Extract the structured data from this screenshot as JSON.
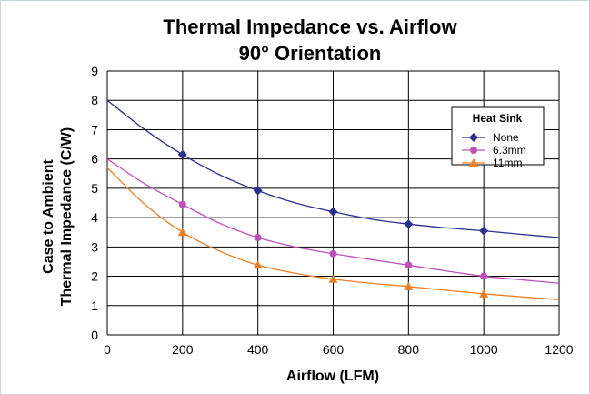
{
  "chart_data": {
    "type": "line",
    "title": [
      "Thermal Impedance vs. Airflow",
      "90° Orientation"
    ],
    "xlabel": "Airflow (LFM)",
    "ylabel": [
      "Case to Ambient",
      "Thermal Impedance (C/W)"
    ],
    "xlim": [
      0,
      1200
    ],
    "ylim": [
      0,
      9
    ],
    "xticks": [
      "0",
      "200",
      "400",
      "600",
      "800",
      "1000",
      "1200"
    ],
    "yticks": [
      "0",
      "1",
      "2",
      "3",
      "4",
      "5",
      "6",
      "7",
      "8",
      "9"
    ],
    "grid": true,
    "legend": {
      "title": "Heat Sink",
      "placement": "top-right"
    },
    "series": [
      {
        "name": "None",
        "color": "#2b2f8f",
        "marker": "diamond",
        "markers_x": [
          200,
          400,
          600,
          800,
          1000
        ],
        "markers_y": [
          6.15,
          4.92,
          4.2,
          3.78,
          3.55
        ],
        "x": [
          0,
          100,
          200,
          300,
          400,
          500,
          600,
          700,
          800,
          900,
          1000,
          1100,
          1200
        ],
        "y": [
          8.0,
          7.0,
          6.15,
          5.45,
          4.92,
          4.5,
          4.2,
          3.95,
          3.78,
          3.65,
          3.55,
          3.43,
          3.32
        ]
      },
      {
        "name": "6.3mm",
        "color": "#c050b8",
        "marker": "circle",
        "markers_x": [
          200,
          400,
          600,
          800,
          1000
        ],
        "markers_y": [
          4.45,
          3.32,
          2.77,
          2.38,
          2.0
        ],
        "x": [
          0,
          100,
          200,
          300,
          400,
          500,
          600,
          700,
          800,
          900,
          1000,
          1100,
          1200
        ],
        "y": [
          6.0,
          5.15,
          4.45,
          3.8,
          3.32,
          3.0,
          2.77,
          2.57,
          2.38,
          2.18,
          2.0,
          1.88,
          1.76
        ]
      },
      {
        "name": "11mm",
        "color": "#f07c20",
        "marker": "triangle",
        "markers_x": [
          200,
          400,
          600,
          800,
          1000
        ],
        "markers_y": [
          3.5,
          2.38,
          1.9,
          1.65,
          1.4
        ],
        "x": [
          0,
          100,
          200,
          300,
          400,
          500,
          600,
          700,
          800,
          900,
          1000,
          1100,
          1200
        ],
        "y": [
          5.7,
          4.45,
          3.5,
          2.85,
          2.38,
          2.1,
          1.9,
          1.76,
          1.65,
          1.52,
          1.4,
          1.3,
          1.2
        ]
      }
    ]
  }
}
